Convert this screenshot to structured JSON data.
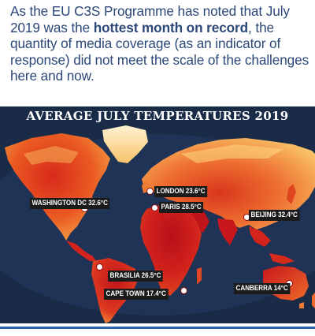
{
  "intro": {
    "part1": "As the EU C3S Programme has noted that July 2019 was the ",
    "bold": "hottest month on record",
    "part2": ", the quantity of media coverage (as an indicator of response) did not meet the scale of the challenges here and now."
  },
  "map": {
    "title": "AVERAGE JULY TEMPERATURES 2019",
    "colors": {
      "ocean": "#1a2b47",
      "ocean_shelf": "#2f4f83",
      "hot": "#c8171c",
      "warm": "#e5501c",
      "mild": "#f39a3c",
      "cool": "#fbd37a",
      "cold": "#fff0c6",
      "label_bg": "#1b1b1b"
    },
    "cities": [
      {
        "key": "london",
        "label": "LONDON 23.6°C"
      },
      {
        "key": "paris",
        "label": "PARIS 28.5°C"
      },
      {
        "key": "washington",
        "label": "WASHINGTON DC 32.6°C"
      },
      {
        "key": "beijing",
        "label": "BEIJING 32.4°C"
      },
      {
        "key": "brasilia",
        "label": "BRASILIA 26.5°C"
      },
      {
        "key": "capetown",
        "label": "CAPE TOWN 17.4°C"
      },
      {
        "key": "canberra",
        "label": "CANBERRA 14°C"
      }
    ]
  }
}
